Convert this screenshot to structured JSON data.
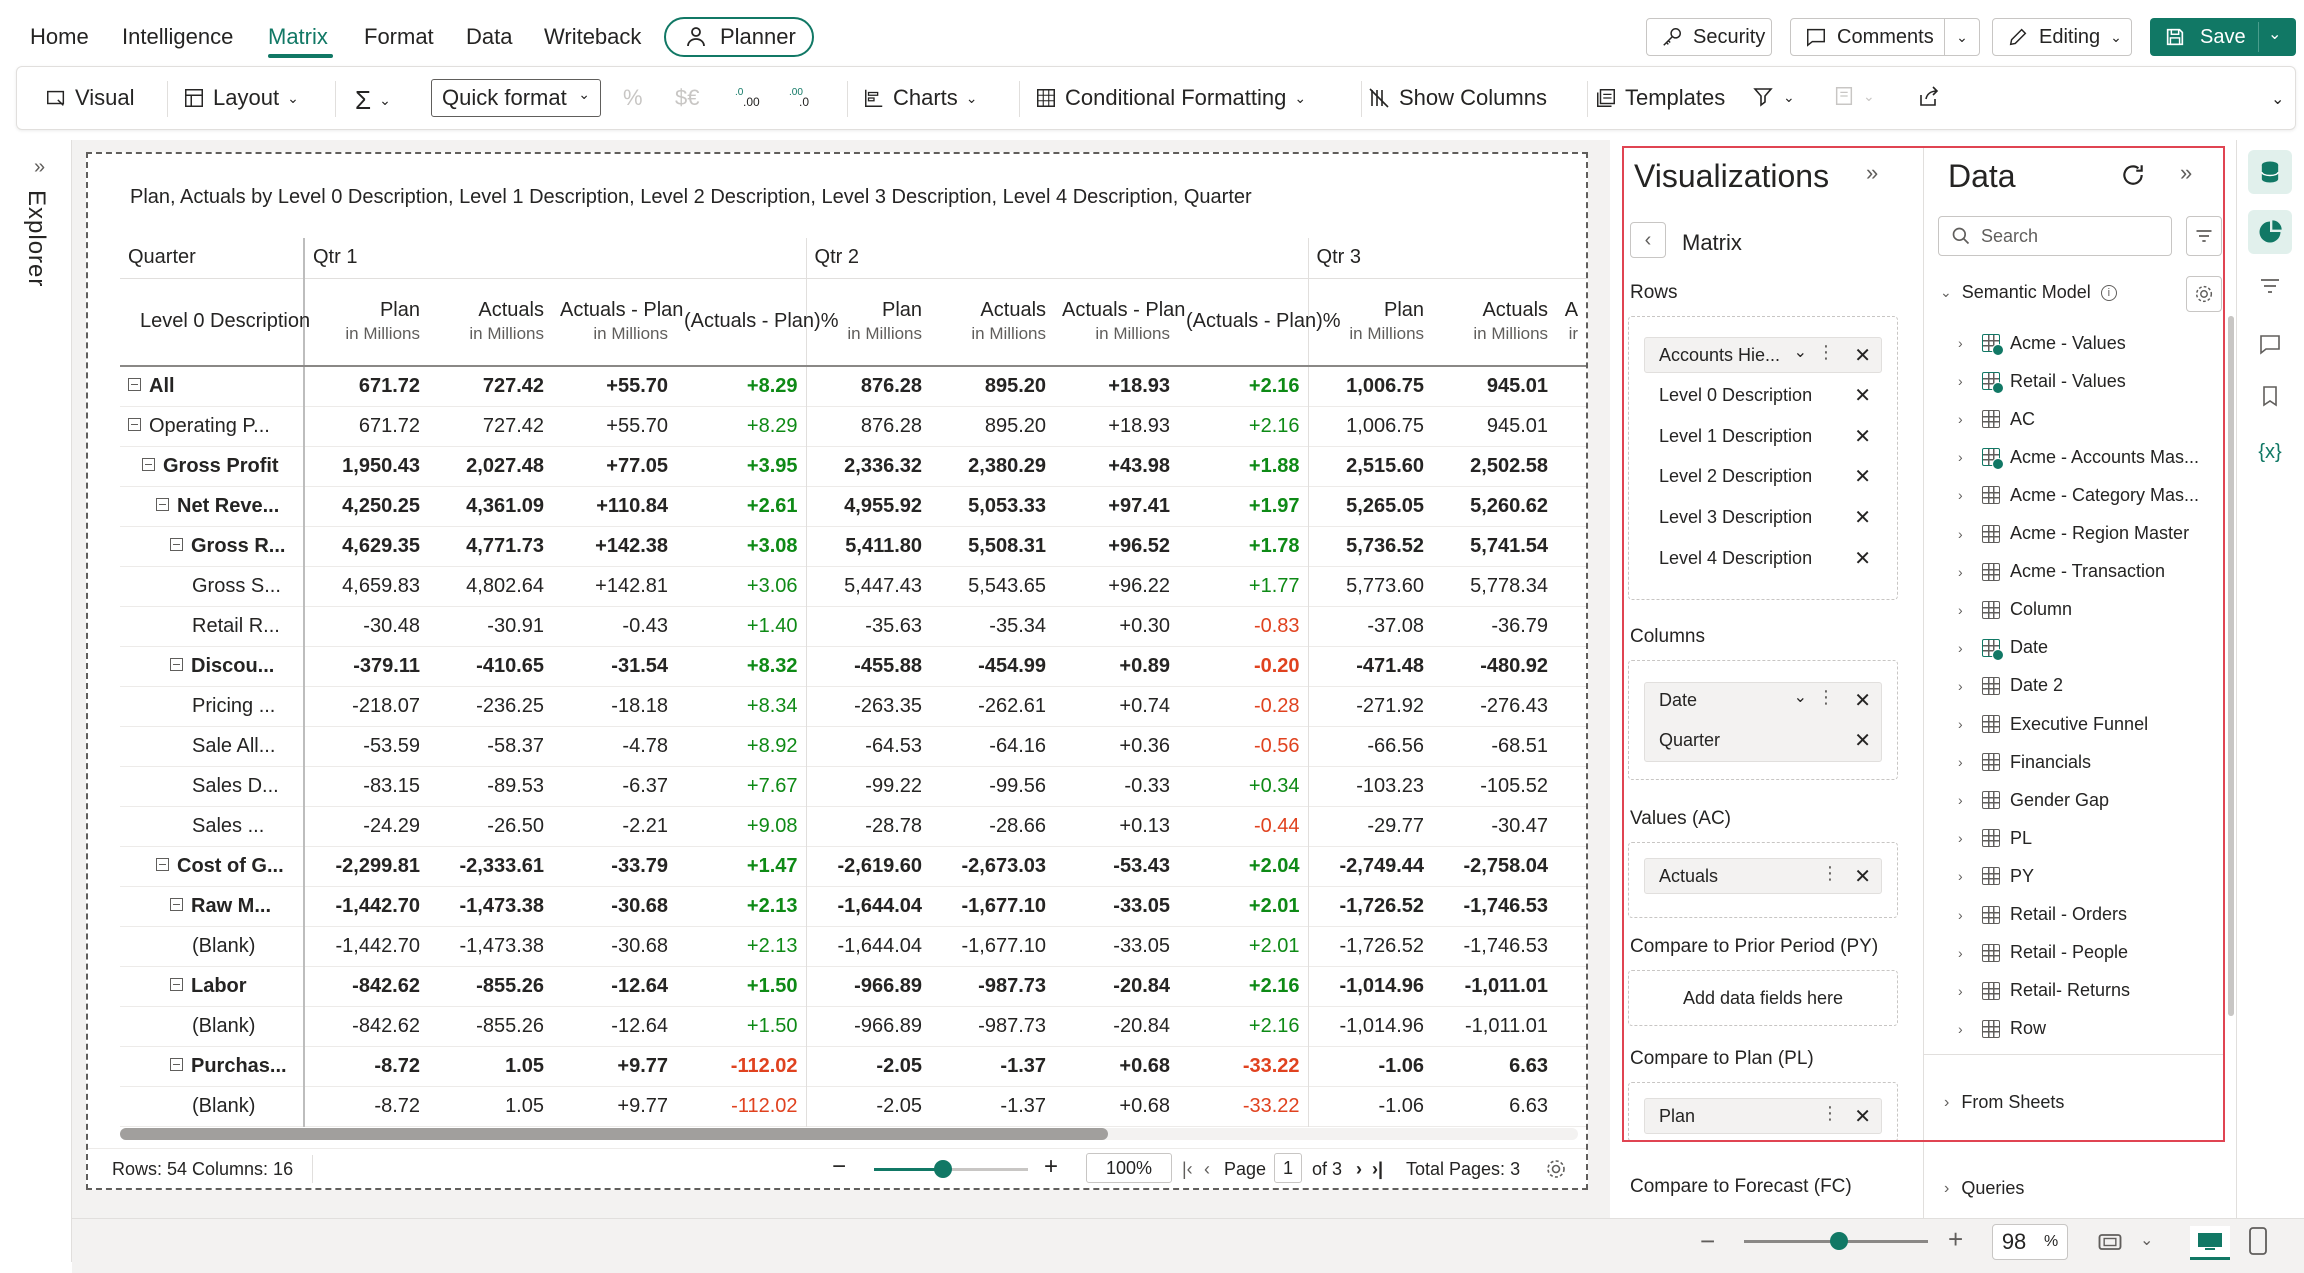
{
  "menu": {
    "items": [
      "Home",
      "Intelligence",
      "Matrix",
      "Format",
      "Data",
      "Writeback"
    ],
    "active": "Matrix",
    "planner": "Planner",
    "security": "Security",
    "comments": "Comments",
    "editing": "Editing",
    "save": "Save"
  },
  "toolbar": {
    "visual": "Visual",
    "layout": "Layout",
    "sigma": "Σ",
    "quick_format": "Quick format",
    "percent": "%",
    "currency": "$€",
    "charts": "Charts",
    "conditional_formatting": "Conditional Formatting",
    "show_columns": "Show Columns",
    "templates": "Templates"
  },
  "explorer": {
    "label": "Explorer"
  },
  "visual": {
    "title": "Plan, Actuals by Level 0 Description, Level 1 Description, Level 2 Description, Level 3 Description, Level 4 Description, Quarter",
    "matrix": {
      "quarter_header": "Quarter",
      "quarters": [
        "Qtr 1",
        "Qtr 2",
        "Qtr 3"
      ],
      "row_header": "Level 0 Description",
      "columns": [
        {
          "name": "Plan",
          "unit": "in Millions"
        },
        {
          "name": "Actuals",
          "unit": "in Millions"
        },
        {
          "name": "Actuals - Plan",
          "unit": "in Millions"
        },
        {
          "name": "(Actuals - Plan)%",
          "unit": ""
        }
      ],
      "cut_column": {
        "name": "A",
        "unit": "ir"
      },
      "rows": [
        {
          "label": "All",
          "indent": 0,
          "collapse": true,
          "bold": true,
          "q1": [
            "671.72",
            "727.42",
            "+55.70",
            "+8.29"
          ],
          "q2": [
            "876.28",
            "895.20",
            "+18.93",
            "+2.16"
          ],
          "q3": [
            "1,006.75",
            "945.01"
          ]
        },
        {
          "label": "Operating P...",
          "indent": 0,
          "collapse": true,
          "bold": false,
          "q1": [
            "671.72",
            "727.42",
            "+55.70",
            "+8.29"
          ],
          "q2": [
            "876.28",
            "895.20",
            "+18.93",
            "+2.16"
          ],
          "q3": [
            "1,006.75",
            "945.01"
          ]
        },
        {
          "label": "Gross Profit",
          "indent": 1,
          "collapse": true,
          "bold": true,
          "q1": [
            "1,950.43",
            "2,027.48",
            "+77.05",
            "+3.95"
          ],
          "q2": [
            "2,336.32",
            "2,380.29",
            "+43.98",
            "+1.88"
          ],
          "q3": [
            "2,515.60",
            "2,502.58"
          ]
        },
        {
          "label": "Net Reve...",
          "indent": 2,
          "collapse": true,
          "bold": true,
          "q1": [
            "4,250.25",
            "4,361.09",
            "+110.84",
            "+2.61"
          ],
          "q2": [
            "4,955.92",
            "5,053.33",
            "+97.41",
            "+1.97"
          ],
          "q3": [
            "5,265.05",
            "5,260.62"
          ]
        },
        {
          "label": "Gross R...",
          "indent": 3,
          "collapse": true,
          "bold": true,
          "q1": [
            "4,629.35",
            "4,771.73",
            "+142.38",
            "+3.08"
          ],
          "q2": [
            "5,411.80",
            "5,508.31",
            "+96.52",
            "+1.78"
          ],
          "q3": [
            "5,736.52",
            "5,741.54"
          ]
        },
        {
          "label": "Gross S...",
          "indent": 4,
          "collapse": false,
          "bold": false,
          "q1": [
            "4,659.83",
            "4,802.64",
            "+142.81",
            "+3.06"
          ],
          "q2": [
            "5,447.43",
            "5,543.65",
            "+96.22",
            "+1.77"
          ],
          "q3": [
            "5,773.60",
            "5,778.34"
          ]
        },
        {
          "label": "Retail R...",
          "indent": 4,
          "collapse": false,
          "bold": false,
          "q1": [
            "-30.48",
            "-30.91",
            "-0.43",
            "+1.40"
          ],
          "q2": [
            "-35.63",
            "-35.34",
            "+0.30",
            "-0.83"
          ],
          "q3": [
            "-37.08",
            "-36.79"
          ]
        },
        {
          "label": "Discou...",
          "indent": 3,
          "collapse": true,
          "bold": true,
          "q1": [
            "-379.11",
            "-410.65",
            "-31.54",
            "+8.32"
          ],
          "q2": [
            "-455.88",
            "-454.99",
            "+0.89",
            "-0.20"
          ],
          "q3": [
            "-471.48",
            "-480.92"
          ]
        },
        {
          "label": "Pricing ...",
          "indent": 4,
          "collapse": false,
          "bold": false,
          "q1": [
            "-218.07",
            "-236.25",
            "-18.18",
            "+8.34"
          ],
          "q2": [
            "-263.35",
            "-262.61",
            "+0.74",
            "-0.28"
          ],
          "q3": [
            "-271.92",
            "-276.43"
          ]
        },
        {
          "label": "Sale All...",
          "indent": 4,
          "collapse": false,
          "bold": false,
          "q1": [
            "-53.59",
            "-58.37",
            "-4.78",
            "+8.92"
          ],
          "q2": [
            "-64.53",
            "-64.16",
            "+0.36",
            "-0.56"
          ],
          "q3": [
            "-66.56",
            "-68.51"
          ]
        },
        {
          "label": "Sales D...",
          "indent": 4,
          "collapse": false,
          "bold": false,
          "q1": [
            "-83.15",
            "-89.53",
            "-6.37",
            "+7.67"
          ],
          "q2": [
            "-99.22",
            "-99.56",
            "-0.33",
            "+0.34"
          ],
          "q3": [
            "-103.23",
            "-105.52"
          ]
        },
        {
          "label": "Sales ...",
          "indent": 4,
          "collapse": false,
          "bold": false,
          "q1": [
            "-24.29",
            "-26.50",
            "-2.21",
            "+9.08"
          ],
          "q2": [
            "-28.78",
            "-28.66",
            "+0.13",
            "-0.44"
          ],
          "q3": [
            "-29.77",
            "-30.47"
          ]
        },
        {
          "label": "Cost of G...",
          "indent": 2,
          "collapse": true,
          "bold": true,
          "q1": [
            "-2,299.81",
            "-2,333.61",
            "-33.79",
            "+1.47"
          ],
          "q2": [
            "-2,619.60",
            "-2,673.03",
            "-53.43",
            "+2.04"
          ],
          "q3": [
            "-2,749.44",
            "-2,758.04"
          ]
        },
        {
          "label": "Raw M...",
          "indent": 3,
          "collapse": true,
          "bold": true,
          "q1": [
            "-1,442.70",
            "-1,473.38",
            "-30.68",
            "+2.13"
          ],
          "q2": [
            "-1,644.04",
            "-1,677.10",
            "-33.05",
            "+2.01"
          ],
          "q3": [
            "-1,726.52",
            "-1,746.53"
          ]
        },
        {
          "label": "(Blank)",
          "indent": 4,
          "collapse": false,
          "bold": false,
          "q1": [
            "-1,442.70",
            "-1,473.38",
            "-30.68",
            "+2.13"
          ],
          "q2": [
            "-1,644.04",
            "-1,677.10",
            "-33.05",
            "+2.01"
          ],
          "q3": [
            "-1,726.52",
            "-1,746.53"
          ]
        },
        {
          "label": "Labor",
          "indent": 3,
          "collapse": true,
          "bold": true,
          "q1": [
            "-842.62",
            "-855.26",
            "-12.64",
            "+1.50"
          ],
          "q2": [
            "-966.89",
            "-987.73",
            "-20.84",
            "+2.16"
          ],
          "q3": [
            "-1,014.96",
            "-1,011.01"
          ]
        },
        {
          "label": "(Blank)",
          "indent": 4,
          "collapse": false,
          "bold": false,
          "q1": [
            "-842.62",
            "-855.26",
            "-12.64",
            "+1.50"
          ],
          "q2": [
            "-966.89",
            "-987.73",
            "-20.84",
            "+2.16"
          ],
          "q3": [
            "-1,014.96",
            "-1,011.01"
          ]
        },
        {
          "label": "Purchas...",
          "indent": 3,
          "collapse": true,
          "bold": true,
          "q1": [
            "-8.72",
            "1.05",
            "+9.77",
            "-112.02"
          ],
          "q2": [
            "-2.05",
            "-1.37",
            "+0.68",
            "-33.22"
          ],
          "q3": [
            "-1.06",
            "6.63"
          ]
        },
        {
          "label": "(Blank)",
          "indent": 4,
          "collapse": false,
          "bold": false,
          "q1": [
            "-8.72",
            "1.05",
            "+9.77",
            "-112.02"
          ],
          "q2": [
            "-2.05",
            "-1.37",
            "+0.68",
            "-33.22"
          ],
          "q3": [
            "-1.06",
            "6.63"
          ]
        }
      ]
    },
    "footer": {
      "rows_cols": "Rows: 54 Columns: 16",
      "zoom": "100%",
      "page_label": "Page",
      "page": "1",
      "of": "of 3",
      "total_pages": "Total Pages: 3"
    }
  },
  "visualizations": {
    "title": "Visualizations",
    "visual_type": "Matrix",
    "rows_label": "Rows",
    "rows": [
      "Accounts Hie...",
      "Level 0 Description",
      "Level 1 Description",
      "Level 2 Description",
      "Level 3 Description",
      "Level 4 Description"
    ],
    "columns_label": "Columns",
    "columns": [
      "Date",
      "Quarter"
    ],
    "values_label": "Values (AC)",
    "values": [
      "Actuals"
    ],
    "py_label": "Compare to Prior Period (PY)",
    "py_placeholder": "Add data fields here",
    "pl_label": "Compare to Plan (PL)",
    "pl": [
      "Plan"
    ],
    "fc_label": "Compare to Forecast (FC)"
  },
  "data_pane": {
    "title": "Data",
    "search_placeholder": "Search",
    "semantic_model": "Semantic Model",
    "tables": [
      {
        "name": "Acme - Values",
        "calc": true
      },
      {
        "name": "Retail - Values",
        "calc": true
      },
      {
        "name": "AC",
        "calc": false
      },
      {
        "name": "Acme - Accounts Mas...",
        "calc": true
      },
      {
        "name": "Acme - Category Mas...",
        "calc": false
      },
      {
        "name": "Acme - Region Master",
        "calc": false
      },
      {
        "name": "Acme - Transaction",
        "calc": false
      },
      {
        "name": "Column",
        "calc": false
      },
      {
        "name": "Date",
        "calc": true
      },
      {
        "name": "Date 2",
        "calc": false
      },
      {
        "name": "Executive Funnel",
        "calc": false
      },
      {
        "name": "Financials",
        "calc": false
      },
      {
        "name": "Gender Gap",
        "calc": false
      },
      {
        "name": "PL",
        "calc": false
      },
      {
        "name": "PY",
        "calc": false
      },
      {
        "name": "Retail - Orders",
        "calc": false
      },
      {
        "name": "Retail - People",
        "calc": false
      },
      {
        "name": "Retail- Returns",
        "calc": false
      },
      {
        "name": "Row",
        "calc": false
      }
    ],
    "from_sheets": "From Sheets",
    "queries": "Queries"
  },
  "statusbar": {
    "zoom": "98",
    "zoom_unit": "%"
  },
  "colors": {
    "accent": "#117865",
    "positive": "#0e8a16",
    "negative": "#e0421f",
    "highlight": "#e04452"
  }
}
